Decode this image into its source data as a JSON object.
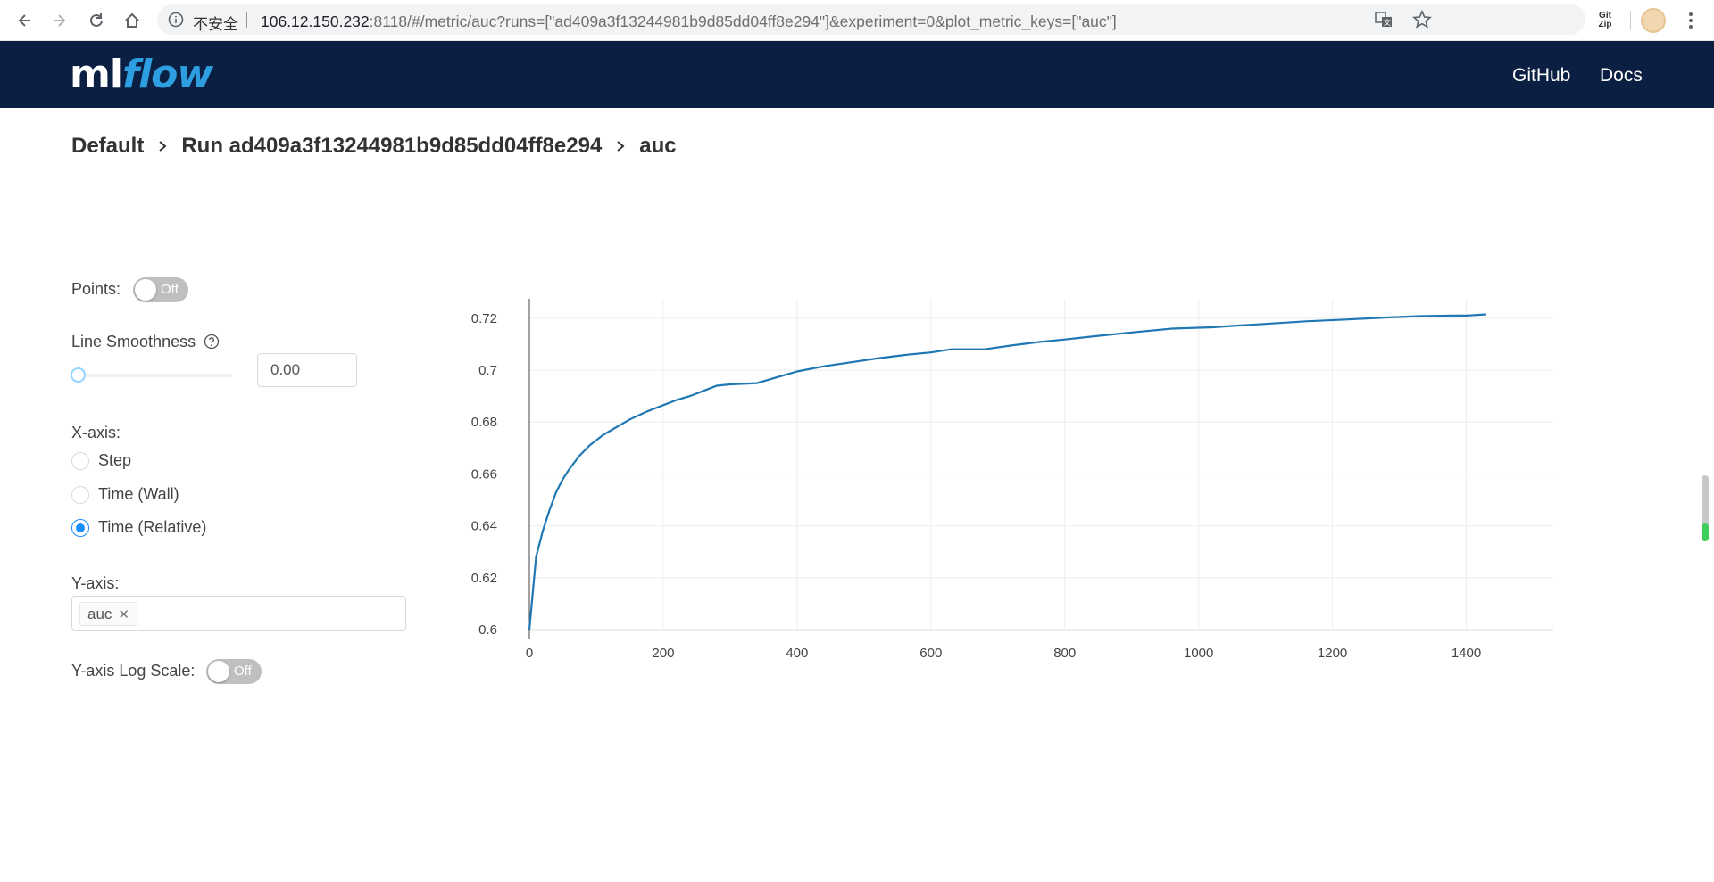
{
  "browser": {
    "security_label": "不安全",
    "url_host": "106.12.150.232",
    "url_path": ":8118/#/metric/auc?runs=[\"ad409a3f13244981b9d85dd04ff8e294\"]&experiment=0&plot_metric_keys=[\"auc\"]",
    "extension_label_top": "Git",
    "extension_label_bottom": "Zip"
  },
  "header": {
    "logo_ml": "ml",
    "logo_flow": "flow",
    "links": [
      "GitHub",
      "Docs"
    ],
    "bg_color": "#0b1f42"
  },
  "breadcrumb": {
    "items": [
      "Default",
      "Run ad409a3f13244981b9d85dd04ff8e294",
      "auc"
    ]
  },
  "controls": {
    "points_label": "Points:",
    "points_toggle": "Off",
    "smoothness_label": "Line Smoothness",
    "smoothness_value": "0.00",
    "xaxis_label": "X-axis:",
    "xaxis_options": [
      "Step",
      "Time (Wall)",
      "Time (Relative)"
    ],
    "xaxis_selected": "Time (Relative)",
    "yaxis_label": "Y-axis:",
    "yaxis_tag": "auc",
    "ylog_label": "Y-axis Log Scale:",
    "ylog_toggle": "Off"
  },
  "chart_data": {
    "type": "line",
    "title": "",
    "xlabel": "",
    "ylabel": "",
    "xlim": [
      0,
      1530
    ],
    "ylim": [
      0.6,
      0.7275
    ],
    "x_ticks": [
      0,
      200,
      400,
      600,
      800,
      1000,
      1200,
      1400
    ],
    "y_ticks": [
      0.6,
      0.62,
      0.64,
      0.66,
      0.68,
      0.7,
      0.72
    ],
    "y_tick_labels": [
      "0.6",
      "0.62",
      "0.64",
      "0.66",
      "0.68",
      "0.7",
      "0.72"
    ],
    "grid": true,
    "legend": "none",
    "series": [
      {
        "color": "#1f77b4",
        "x": [
          0,
          10,
          20,
          30,
          40,
          50,
          60,
          75,
          90,
          110,
          130,
          150,
          175,
          200,
          220,
          240,
          260,
          280,
          300,
          340,
          360,
          400,
          440,
          480,
          520,
          560,
          600,
          630,
          680,
          720,
          760,
          800,
          850,
          900,
          960,
          1020,
          1060,
          1100,
          1160,
          1220,
          1280,
          1330,
          1380,
          1400,
          1430
        ],
        "values": [
          0.6,
          0.628,
          0.638,
          0.646,
          0.653,
          0.658,
          0.662,
          0.667,
          0.671,
          0.675,
          0.678,
          0.681,
          0.684,
          0.6865,
          0.6885,
          0.69,
          0.692,
          0.694,
          0.6945,
          0.695,
          0.6965,
          0.6995,
          0.7015,
          0.703,
          0.7045,
          0.7058,
          0.7068,
          0.708,
          0.708,
          0.7095,
          0.7108,
          0.7118,
          0.7132,
          0.7145,
          0.716,
          0.7165,
          0.7172,
          0.7178,
          0.7188,
          0.7195,
          0.7203,
          0.7208,
          0.721,
          0.721,
          0.7215
        ]
      }
    ]
  }
}
